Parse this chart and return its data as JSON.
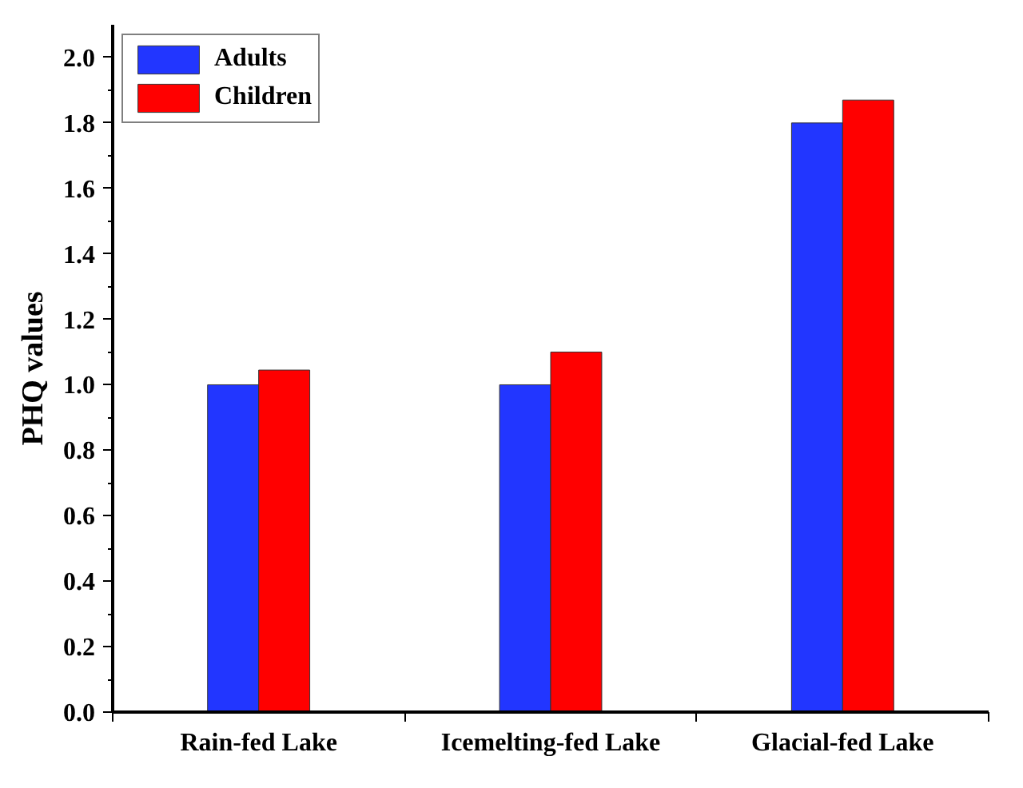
{
  "chart_data": {
    "type": "bar",
    "ylabel": "PHQ values",
    "categories": [
      "Rain-fed Lake",
      "Icemelting-fed Lake",
      "Glacial-fed Lake"
    ],
    "series": [
      {
        "name": "Adults",
        "color": "#2236ff",
        "values": [
          1.0,
          1.0,
          1.8
        ]
      },
      {
        "name": "Children",
        "color": "#ff0000",
        "values": [
          1.045,
          1.1,
          1.87
        ]
      }
    ],
    "ylim": [
      0,
      2.1
    ],
    "yticks": [
      {
        "value": 0,
        "label": "0.0"
      },
      0.2,
      0.4,
      0.6,
      0.8,
      {
        "value": 1,
        "label": "1.0"
      },
      1.2,
      1.4,
      1.6,
      1.8,
      {
        "value": 2,
        "label": "2.0"
      }
    ],
    "grid": false,
    "legend": "top left"
  }
}
